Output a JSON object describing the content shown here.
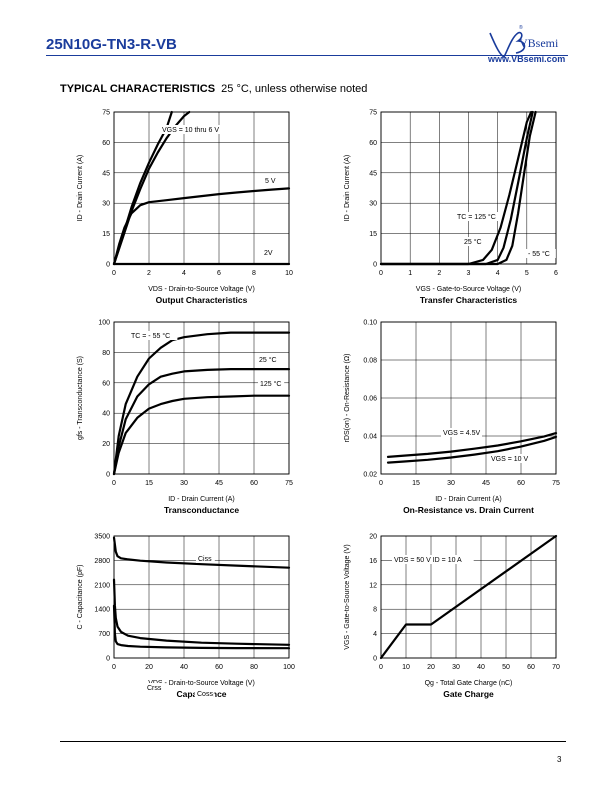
{
  "header": {
    "part_number": "25N10G-TN3-R-VB",
    "brand": "VBsemi",
    "url": "www.VBsemi.com",
    "registered": "®",
    "accent_color": "#1a3c9c"
  },
  "section": {
    "title": "TYPICAL CHARACTERISTICS",
    "note": "25 °C, unless otherwise noted"
  },
  "footer": {
    "page": "3"
  },
  "chart_data": [
    {
      "type": "line",
      "title": "Output Characteristics",
      "xlabel": "VDS - Drain-to-Source Voltage (V)",
      "ylabel": "ID - Drain Current (A)",
      "xlim": [
        0,
        10
      ],
      "ylim": [
        0,
        75
      ],
      "xticks": [
        0,
        2,
        4,
        6,
        8,
        10
      ],
      "yticks": [
        0,
        15,
        30,
        45,
        60,
        75
      ],
      "grid": true,
      "series": [
        {
          "name": "VGS = 10 thru 6 V",
          "x": [
            0,
            0.5,
            1,
            1.5,
            2,
            2.5,
            3,
            3.5,
            4,
            4.3
          ],
          "y": [
            0,
            13,
            26,
            37,
            47,
            55,
            62,
            68,
            73,
            75
          ]
        },
        {
          "x": [
            0,
            0.5,
            1,
            1.5,
            2,
            2.5,
            3,
            3.3
          ],
          "y": [
            0,
            14,
            28,
            40,
            50,
            59,
            67,
            75
          ]
        },
        {
          "name": "5 V",
          "x": [
            0,
            0.3,
            0.6,
            1,
            1.5,
            2,
            3,
            4,
            5,
            6,
            7,
            8,
            9,
            10
          ],
          "y": [
            0,
            10,
            18,
            25,
            29,
            30.5,
            31.5,
            32.5,
            33.5,
            34.5,
            35.3,
            36,
            36.7,
            37.3
          ]
        },
        {
          "name": "2V",
          "x": [
            0,
            10
          ],
          "y": [
            0,
            0
          ]
        }
      ]
    },
    {
      "type": "line",
      "title": "Transfer Characteristics",
      "xlabel": "VGS - Gate-to-Source Voltage (V)",
      "ylabel": "ID - Drain Current (A)",
      "xlim": [
        0,
        6
      ],
      "ylim": [
        0,
        75
      ],
      "xticks": [
        0,
        1,
        2,
        3,
        4,
        5,
        6
      ],
      "yticks": [
        0,
        15,
        30,
        45,
        60,
        75
      ],
      "grid": true,
      "series": [
        {
          "name": "TC = 125 °C",
          "x": [
            0,
            3.0,
            3.5,
            3.8,
            4.1,
            4.4,
            4.7,
            5.0,
            5.15
          ],
          "y": [
            0,
            0,
            2,
            7,
            18,
            34,
            52,
            70,
            75
          ]
        },
        {
          "name": "25 °C",
          "x": [
            0,
            3.6,
            4.0,
            4.2,
            4.45,
            4.7,
            5.0,
            5.2
          ],
          "y": [
            0,
            0,
            2,
            8,
            22,
            40,
            62,
            75
          ]
        },
        {
          "name": "- 55 °C",
          "x": [
            0,
            4.0,
            4.3,
            4.5,
            4.7,
            4.9,
            5.1,
            5.3
          ],
          "y": [
            0,
            0,
            2,
            9,
            25,
            44,
            63,
            75
          ]
        }
      ]
    },
    {
      "type": "line",
      "title": "Transconductance",
      "xlabel": "ID - Drain Current (A)",
      "ylabel": "gfs - Transconductance (S)",
      "xlim": [
        0,
        75
      ],
      "ylim": [
        0,
        100
      ],
      "xticks": [
        0,
        15,
        30,
        45,
        60,
        75
      ],
      "yticks": [
        0,
        20,
        40,
        60,
        80,
        100
      ],
      "grid": true,
      "series": [
        {
          "name": "TC = - 55 °C",
          "x": [
            0,
            2,
            5,
            10,
            15,
            20,
            25,
            30,
            40,
            50,
            60,
            75
          ],
          "y": [
            0,
            25,
            46,
            64,
            76,
            83,
            88,
            90,
            92,
            93,
            93,
            93
          ]
        },
        {
          "name": "25 °C",
          "x": [
            0,
            2,
            5,
            10,
            15,
            20,
            25,
            30,
            40,
            50,
            60,
            75
          ],
          "y": [
            0,
            18,
            36,
            51,
            59,
            64,
            66,
            67.5,
            68.5,
            69,
            69,
            69
          ]
        },
        {
          "name": "125 °C",
          "x": [
            0,
            2,
            5,
            10,
            15,
            20,
            25,
            30,
            40,
            50,
            60,
            75
          ],
          "y": [
            0,
            14,
            27,
            37,
            43,
            46,
            48,
            49.5,
            50.5,
            51,
            51.5,
            51.5
          ]
        }
      ]
    },
    {
      "type": "line",
      "title": "On-Resistance vs. Drain Current",
      "xlabel": "ID - Drain Current (A)",
      "ylabel": "rDS(on) - On-Resistance (Ω)",
      "xlim": [
        0,
        75
      ],
      "ylim": [
        0.02,
        0.1
      ],
      "xticks": [
        0,
        15,
        30,
        45,
        60,
        75
      ],
      "yticks": [
        0.02,
        0.04,
        0.06,
        0.08,
        0.1
      ],
      "grid": true,
      "series": [
        {
          "name": "VGS = 4.5V",
          "x": [
            3,
            10,
            20,
            30,
            40,
            50,
            60,
            70,
            75
          ],
          "y": [
            0.029,
            0.0297,
            0.0306,
            0.0318,
            0.0333,
            0.035,
            0.0372,
            0.0398,
            0.0415
          ]
        },
        {
          "name": "VGS = 10 V",
          "x": [
            3,
            10,
            20,
            30,
            40,
            50,
            60,
            70,
            75
          ],
          "y": [
            0.026,
            0.0266,
            0.0275,
            0.0287,
            0.0302,
            0.032,
            0.0344,
            0.0375,
            0.0395
          ]
        }
      ]
    },
    {
      "type": "line",
      "title": "Capacitance",
      "xlabel": "VDS - Drain-to-Source Voltage (V)",
      "ylabel": "C - Capacitance (pF)",
      "xlim": [
        0,
        100
      ],
      "ylim": [
        0,
        3500
      ],
      "xticks": [
        0,
        20,
        40,
        60,
        80,
        100
      ],
      "yticks": [
        0,
        700,
        1400,
        2100,
        2800,
        3500
      ],
      "grid": true,
      "series": [
        {
          "name": "Ciss",
          "x": [
            0,
            1,
            2,
            4,
            8,
            15,
            30,
            50,
            70,
            100
          ],
          "y": [
            3450,
            3050,
            2920,
            2860,
            2830,
            2790,
            2740,
            2690,
            2650,
            2590
          ]
        },
        {
          "name": "Crss",
          "x": [
            0,
            0.5,
            1,
            2,
            4,
            8,
            15,
            30,
            50,
            70,
            100
          ],
          "y": [
            2250,
            1500,
            1150,
            900,
            750,
            640,
            570,
            500,
            440,
            410,
            380
          ]
        },
        {
          "name": "Coss",
          "x": [
            0,
            0.5,
            1,
            2,
            4,
            8,
            15,
            30,
            50,
            70,
            100
          ],
          "y": [
            1500,
            700,
            480,
            400,
            370,
            345,
            325,
            305,
            290,
            285,
            280
          ]
        }
      ]
    },
    {
      "type": "line",
      "title": "Gate Charge",
      "xlabel": "Qg - Total Gate Charge (nC)",
      "ylabel": "VGS - Gate-to-Source Voltage (V)",
      "xlim": [
        0,
        70
      ],
      "ylim": [
        0,
        20
      ],
      "xticks": [
        0,
        10,
        20,
        30,
        40,
        50,
        60,
        70
      ],
      "yticks": [
        0,
        4,
        8,
        12,
        16,
        20
      ],
      "grid": true,
      "annotation": "VDS = 50 V  ID = 10 A",
      "series": [
        {
          "x": [
            0,
            10,
            20,
            70
          ],
          "y": [
            0,
            5.5,
            5.5,
            20
          ]
        }
      ]
    }
  ]
}
